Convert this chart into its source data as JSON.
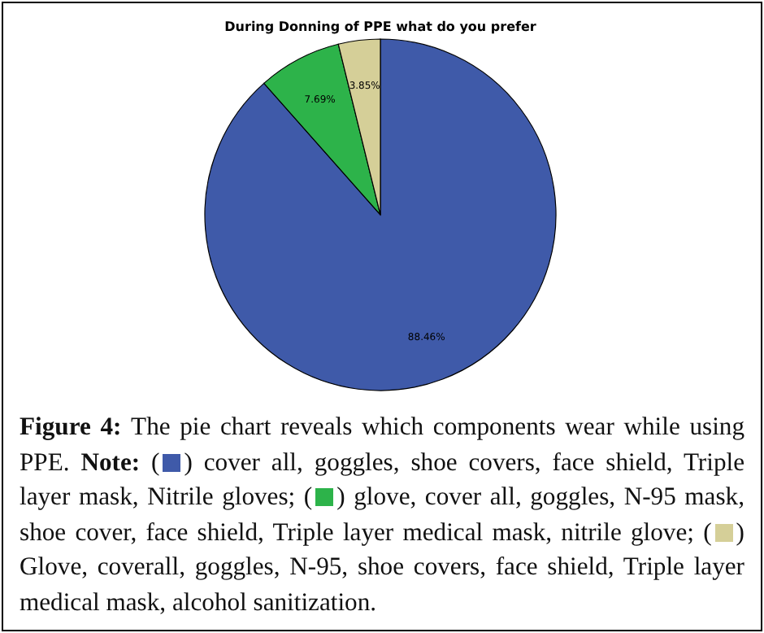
{
  "chart_data": {
    "type": "pie",
    "title": "During Donning of PPE what do you prefer",
    "categories": [
      null,
      null,
      null
    ],
    "values": [
      88.46,
      7.69,
      3.85
    ],
    "value_labels": [
      "88.46%",
      "7.69%",
      "3.85%"
    ],
    "colors": [
      "#3f5aa9",
      "#2db34a",
      "#d5cf98"
    ],
    "annotations": [
      "Figure 4:",
      "The pie chart reveals which components wear while using PPE.",
      "Note:",
      "(",
      ") cover all, goggles, shoe covers, face shield, Triple layer mask, Nitrile gloves; (",
      ") glove, cover all, goggles, N-95 mask, shoe cover, face shield, Triple layer medical mask, nitrile glove; (",
      ") Glove, coverall, goggles, N-95, shoe covers, face shield, Triple layer medical mask, alcohol sanitization."
    ]
  }
}
